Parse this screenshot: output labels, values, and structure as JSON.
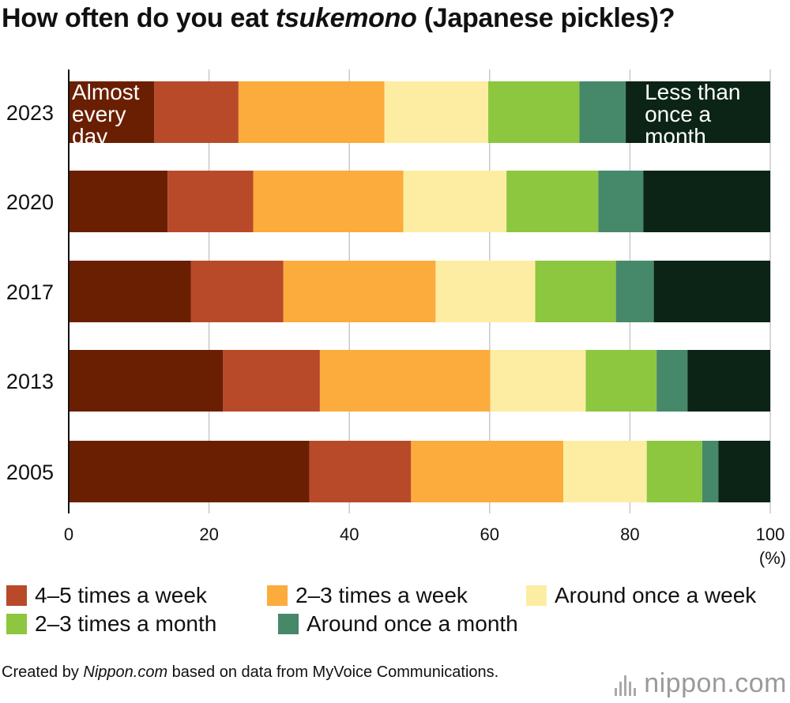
{
  "title": {
    "prefix": "How often do you eat ",
    "italic": "tsukemono",
    "suffix": " (Japanese pickles)?"
  },
  "chart_data": {
    "type": "bar",
    "orientation": "horizontal",
    "stacked": true,
    "categories": [
      "2023",
      "2020",
      "2017",
      "2013",
      "2005"
    ],
    "series": [
      {
        "name": "Almost every day",
        "color": "#6b1f02",
        "values": [
          12.2,
          14.1,
          17.4,
          22.0,
          34.3
        ]
      },
      {
        "name": "4–5 times a week",
        "color": "#b84a2a",
        "values": [
          12.0,
          12.2,
          13.2,
          13.8,
          14.5
        ]
      },
      {
        "name": "2–3 times a week",
        "color": "#fbac3c",
        "values": [
          20.8,
          21.4,
          21.7,
          24.3,
          21.7
        ]
      },
      {
        "name": "Around once a week",
        "color": "#fdeda3",
        "values": [
          14.8,
          14.7,
          14.2,
          13.6,
          11.9
        ]
      },
      {
        "name": "2–3 times a month",
        "color": "#8dc63f",
        "values": [
          13.0,
          13.1,
          11.5,
          10.1,
          7.9
        ]
      },
      {
        "name": "Around once a month",
        "color": "#46896a",
        "values": [
          6.6,
          6.4,
          5.4,
          4.4,
          2.3
        ]
      },
      {
        "name": "Less than once a month",
        "color": "#0b2415",
        "values": [
          20.6,
          18.1,
          16.6,
          11.8,
          7.4
        ]
      }
    ],
    "x_ticks": [
      0,
      20,
      40,
      60,
      80,
      100
    ],
    "xlim": [
      0,
      100
    ],
    "x_unit": "(%)",
    "grid": true,
    "inline_labels": [
      {
        "text": "Almost\nevery\nday",
        "category": "2023",
        "series": "Almost every day"
      },
      {
        "text": "Less than\nonce a\nmonth",
        "category": "2023",
        "series": "Less than once a month"
      }
    ]
  },
  "legend": [
    {
      "label": "4–5 times a week",
      "color": "#b84a2a"
    },
    {
      "label": "2–3 times a week",
      "color": "#fbac3c"
    },
    {
      "label": "Around once a week",
      "color": "#fdeda3"
    },
    {
      "label": "2–3 times a month",
      "color": "#8dc63f"
    },
    {
      "label": "Around once a month",
      "color": "#46896a"
    }
  ],
  "footer": {
    "prefix": "Created by ",
    "italic": "Nippon.com",
    "suffix": " based on data from MyVoice Communications."
  },
  "brand": {
    "main": "nippon",
    "suffix": ".com"
  }
}
